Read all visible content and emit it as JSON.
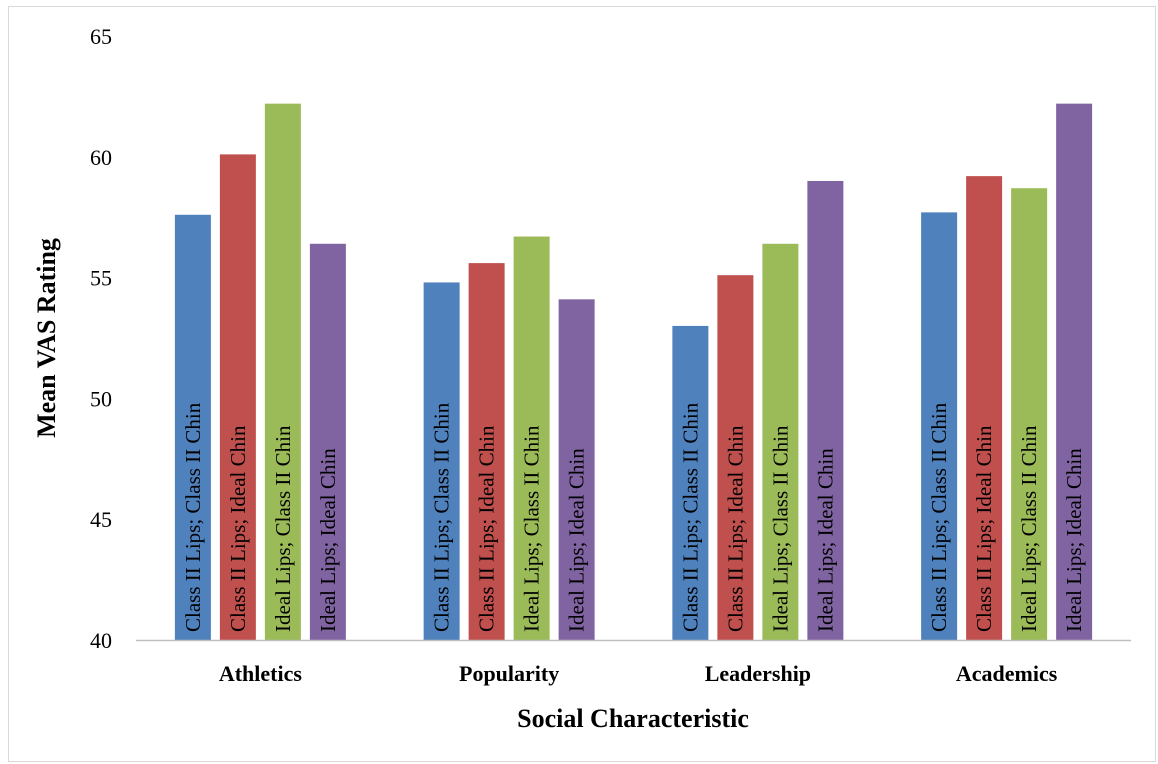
{
  "chart_data": {
    "type": "bar",
    "xlabel": "Social Characteristic",
    "ylabel": "Mean VAS Rating",
    "ylim": [
      40,
      65
    ],
    "yticks": [
      40,
      45,
      50,
      55,
      60,
      65
    ],
    "grid": false,
    "categories": [
      "Athletics",
      "Popularity",
      "Leadership",
      "Academics"
    ],
    "series": [
      {
        "name": "Class II Lips; Class II Chin",
        "color": "#4f81bd",
        "values": [
          57.6,
          54.8,
          53.0,
          57.7
        ]
      },
      {
        "name": "Class II Lips; Ideal Chin",
        "color": "#c0504d",
        "values": [
          60.1,
          55.6,
          55.1,
          59.2
        ]
      },
      {
        "name": "Ideal Lips; Class II Chin",
        "color": "#9bbb59",
        "values": [
          62.2,
          56.7,
          56.4,
          58.7
        ]
      },
      {
        "name": "Ideal Lips; Ideal Chin",
        "color": "#8064a2",
        "values": [
          56.4,
          54.1,
          59.0,
          62.2
        ]
      }
    ]
  }
}
